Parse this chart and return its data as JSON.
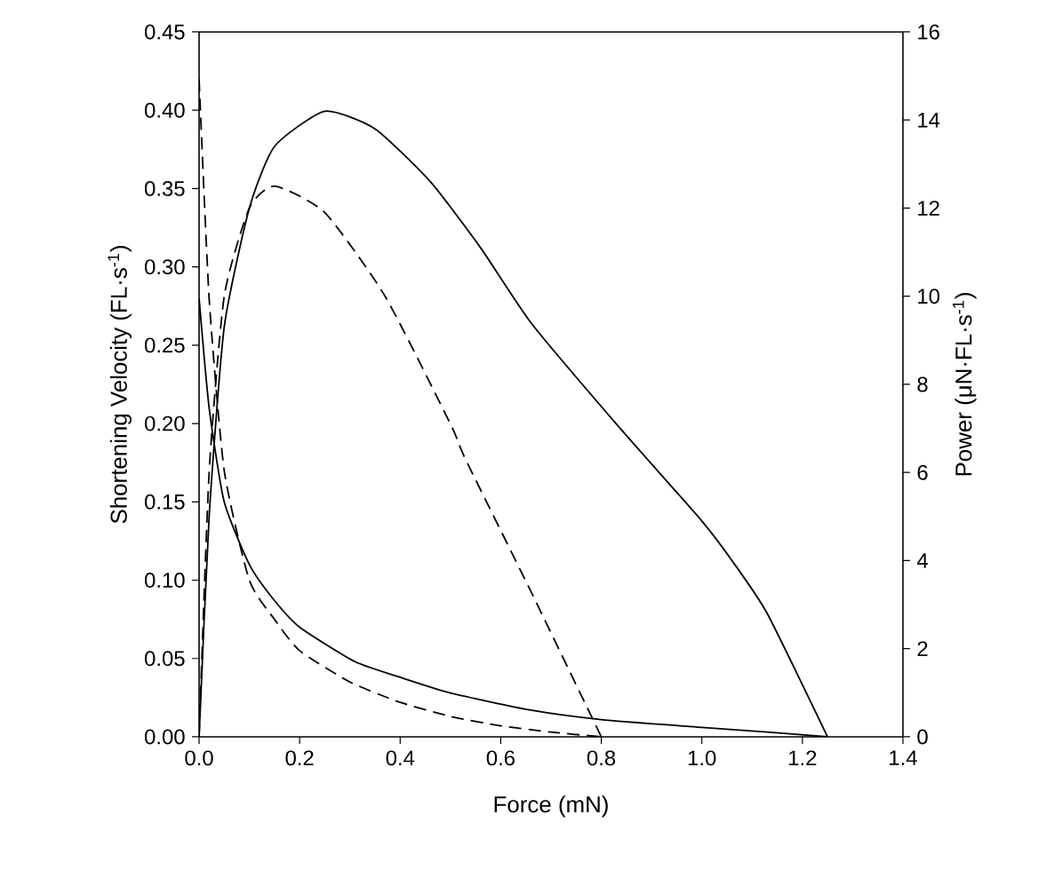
{
  "chart_data": {
    "type": "line",
    "xlabel": "Force (mN)",
    "ylabel": "Shortening Velocity (FL·s$^{-1}$)",
    "y2label": "Power (μN·FL·s$^{-1}$)",
    "xlim": [
      0,
      1.4
    ],
    "xticks": [
      {
        "value": 0,
        "label": "0.0"
      },
      {
        "value": 0.2,
        "label": "0.2"
      },
      {
        "value": 0.4,
        "label": "0.4"
      },
      {
        "value": 0.6,
        "label": "0.6"
      },
      {
        "value": 0.8,
        "label": "0.8"
      },
      {
        "value": 1.0,
        "label": "1.0"
      },
      {
        "value": 1.2,
        "label": "1.2"
      },
      {
        "value": 1.4,
        "label": "1.4"
      }
    ],
    "ylim": [
      0,
      0.45
    ],
    "yticks": [
      {
        "value": 0,
        "label": "0.00"
      },
      {
        "value": 0.05,
        "label": "0.05"
      },
      {
        "value": 0.1,
        "label": "0.10"
      },
      {
        "value": 0.15,
        "label": "0.15"
      },
      {
        "value": 0.2,
        "label": "0.20"
      },
      {
        "value": 0.25,
        "label": "0.25"
      },
      {
        "value": 0.3,
        "label": "0.30"
      },
      {
        "value": 0.35,
        "label": "0.35"
      },
      {
        "value": 0.4,
        "label": "0.40"
      },
      {
        "value": 0.45,
        "label": "0.45"
      }
    ],
    "y2lim": [
      0,
      16
    ],
    "y2ticks": [
      0,
      2,
      4,
      6,
      8,
      10,
      12,
      14,
      16
    ],
    "marker": "none",
    "series": [
      {
        "color": "#000000",
        "line_style": "solid",
        "x": [
          0,
          0.02,
          0.05,
          0.1,
          0.145,
          0.2,
          0.31,
          0.4,
          0.5,
          0.66,
          0.8,
          1.0,
          1.13,
          1.25
        ],
        "values": [
          0.28,
          0.21,
          0.15,
          0.11,
          0.089,
          0.07,
          0.048,
          0.038,
          0.028,
          0.017,
          0.011,
          0.006,
          0.003,
          0
        ]
      },
      {
        "color": "#000000",
        "line_style": "dashed",
        "x": [
          0,
          0.02,
          0.05,
          0.1,
          0.15,
          0.2,
          0.3,
          0.4,
          0.5,
          0.6,
          0.7,
          0.8
        ],
        "values": [
          0.42,
          0.28,
          0.17,
          0.1,
          0.075,
          0.055,
          0.035,
          0.022,
          0.013,
          0.007,
          0.003,
          0
        ]
      },
      {
        "color": "#000000",
        "line_style": "solid",
        "axis": "y2",
        "x": [
          0,
          0.02,
          0.05,
          0.1,
          0.15,
          0.25,
          0.35,
          0.46,
          0.56,
          0.66,
          0.83,
          1.0,
          1.06,
          1.13,
          1.25
        ],
        "values": [
          0,
          5,
          9.3,
          12,
          13.4,
          14.2,
          13.8,
          12.6,
          11.1,
          9.4,
          7.1,
          4.9,
          4.0,
          2.8,
          0
        ]
      },
      {
        "color": "#000000",
        "line_style": "dashed",
        "axis": "y2",
        "x": [
          0,
          0.02,
          0.05,
          0.1,
          0.15,
          0.25,
          0.37,
          0.5,
          0.53,
          0.66,
          0.8
        ],
        "values": [
          0,
          6,
          10,
          12,
          12.5,
          11.9,
          10,
          7.1,
          6.3,
          3.3,
          0
        ]
      }
    ]
  }
}
